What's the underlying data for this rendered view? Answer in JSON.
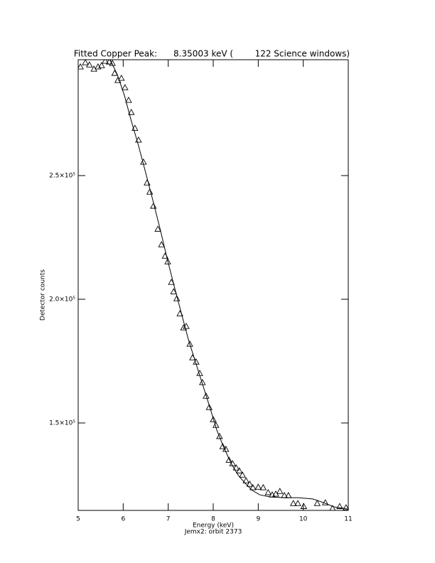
{
  "chart_data": {
    "type": "scatter",
    "title": "Fitted Copper Peak:      8.35003 keV (        122 Science windows)",
    "x_label": "Energy (keV)",
    "subtitle": "Jemx2: orbit 2373",
    "y_label": "Detector counts",
    "xlim": [
      5,
      11
    ],
    "xticks": [
      5,
      6,
      7,
      8,
      9,
      10,
      11
    ],
    "ylim": [
      114660,
      296840
    ],
    "yticks": [
      {
        "value": 150000,
        "label": "1.5×10⁵"
      },
      {
        "value": 200000,
        "label": "2.0×10⁵"
      },
      {
        "value": 250000,
        "label": "2.5×10⁵"
      }
    ],
    "series": [
      {
        "type": "scatter",
        "marker": "triangle",
        "color": "#000000",
        "x": [
          5.05,
          5.16,
          5.25,
          5.35,
          5.44,
          5.52,
          5.6,
          5.69,
          5.76,
          5.81,
          5.88,
          5.96,
          6.04,
          6.12,
          6.18,
          6.26,
          6.34,
          6.45,
          6.53,
          6.59,
          6.67,
          6.77,
          6.85,
          6.93,
          6.99,
          7.07,
          7.12,
          7.19,
          7.26,
          7.34,
          7.4,
          7.48,
          7.54,
          7.62,
          7.7,
          7.76,
          7.84,
          7.91,
          8.0,
          8.06,
          8.14,
          8.21,
          8.28,
          8.35,
          8.43,
          8.51,
          8.58,
          8.65,
          8.73,
          8.81,
          8.88,
          9.0,
          9.11,
          9.22,
          9.31,
          9.39,
          9.48,
          9.58,
          9.67,
          9.78,
          9.88,
          10.01,
          10.31,
          10.49,
          10.65,
          10.81,
          10.95
        ],
        "values": [
          294000,
          295700,
          294800,
          293100,
          294000,
          294500,
          296300,
          296000,
          295400,
          291400,
          288500,
          289400,
          285600,
          280500,
          275600,
          269200,
          264400,
          255500,
          247100,
          243400,
          237700,
          228400,
          222100,
          217500,
          215200,
          206900,
          203100,
          200300,
          194200,
          188500,
          189100,
          181900,
          176400,
          174700,
          170100,
          166400,
          160900,
          156300,
          151400,
          149100,
          144600,
          140500,
          139400,
          135000,
          133600,
          131900,
          130700,
          129000,
          126700,
          125300,
          123900,
          124100,
          123900,
          121900,
          121000,
          121300,
          122400,
          120700,
          120700,
          117500,
          117500,
          116300,
          117500,
          117800,
          115500,
          116300,
          115800
        ]
      },
      {
        "type": "line",
        "color": "#000000",
        "x": [
          5.71,
          5.87,
          6.03,
          6.18,
          6.34,
          6.5,
          6.66,
          6.82,
          6.97,
          7.13,
          7.29,
          7.45,
          7.61,
          7.76,
          7.92,
          8.08,
          8.24,
          8.4,
          8.55,
          8.71,
          8.87,
          9.03,
          9.26,
          9.58,
          9.89,
          10.21,
          10.45,
          10.68,
          11.0
        ],
        "values": [
          296800,
          290800,
          282200,
          272100,
          262100,
          251100,
          239900,
          228400,
          216900,
          205500,
          194500,
          183600,
          174400,
          165800,
          156600,
          147100,
          139900,
          133600,
          129000,
          125600,
          122700,
          121000,
          120100,
          119800,
          119800,
          119300,
          117800,
          116100,
          115200
        ]
      }
    ]
  }
}
